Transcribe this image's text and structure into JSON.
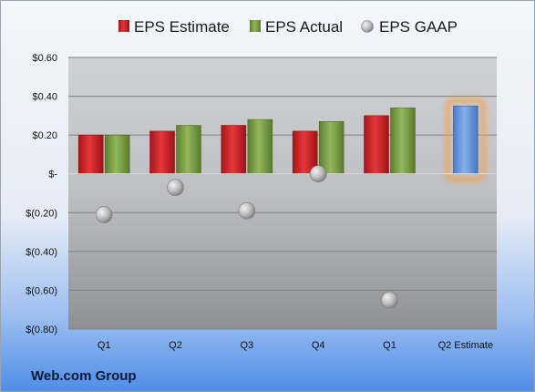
{
  "company_label": "Web.com Group",
  "colors": {
    "estimate": "#d2262a",
    "actual": "#7ea24a",
    "gaap": "#b0b0b0",
    "forecast": "#6b9be0",
    "forecast_glow": "#f5a050"
  },
  "chart_data": {
    "type": "bar",
    "categories": [
      "Q1",
      "Q2",
      "Q3",
      "Q4",
      "Q1",
      "Q2 Estimate"
    ],
    "series": [
      {
        "name": "EPS Estimate",
        "values": [
          0.2,
          0.22,
          0.25,
          0.22,
          0.3,
          null
        ]
      },
      {
        "name": "EPS Actual",
        "values": [
          0.2,
          0.25,
          0.28,
          0.27,
          0.34,
          0.35
        ]
      },
      {
        "name": "EPS GAAP",
        "values": [
          -0.21,
          -0.07,
          -0.19,
          0.0,
          -0.65,
          null
        ]
      }
    ],
    "ylim": [
      -0.8,
      0.6
    ],
    "yticks": [
      0.6,
      0.4,
      0.2,
      0,
      -0.2,
      -0.4,
      -0.6,
      -0.8
    ],
    "ytick_labels": [
      "$0.60",
      "$0.40",
      "$0.20",
      "$-",
      "$(0.20)",
      "$(0.40)",
      "$(0.60)",
      "$(0.80)"
    ],
    "highlight_category": "Q2 Estimate",
    "grid": true,
    "legend_position": "top"
  }
}
